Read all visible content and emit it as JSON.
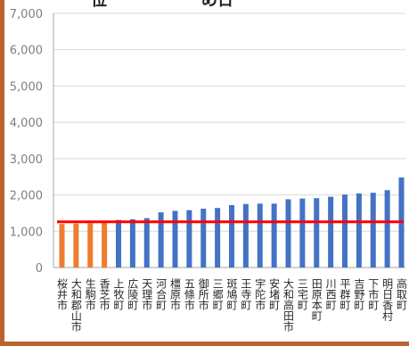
{
  "chart_data": {
    "type": "bar",
    "title_fragment": "一位",
    "title_fragment_2": "め日",
    "categories": [
      "桜井市",
      "大和郡山市",
      "生駒市",
      "香芝市",
      "上牧町",
      "広陵町",
      "天理市",
      "河合町",
      "橿原市",
      "五條市",
      "御所市",
      "三郷町",
      "斑鳩町",
      "王寺町",
      "宇陀市",
      "安堵町",
      "大和高田市",
      "三宅町",
      "田原本町",
      "川西町",
      "平群町",
      "吉野町",
      "下市町",
      "明日香村",
      "高取町"
    ],
    "values": [
      1200,
      1210,
      1220,
      1240,
      1310,
      1330,
      1360,
      1520,
      1560,
      1580,
      1620,
      1640,
      1720,
      1750,
      1760,
      1760,
      1880,
      1900,
      1910,
      1950,
      2010,
      2040,
      2060,
      2130,
      2480
    ],
    "highlight_count": 4,
    "reference_line": 1260,
    "ylim": [
      0,
      7000
    ],
    "yticks": [
      "0",
      "1,000",
      "2,000",
      "3,000",
      "4,000",
      "5,000",
      "6,000",
      "7,000"
    ],
    "grid": true,
    "colors": {
      "bar": "#4472c4",
      "highlight_bar": "#ed7d31",
      "reference_line": "#ff0000",
      "grid": "#d9d9d9",
      "frame": "#a6a6a6"
    }
  }
}
